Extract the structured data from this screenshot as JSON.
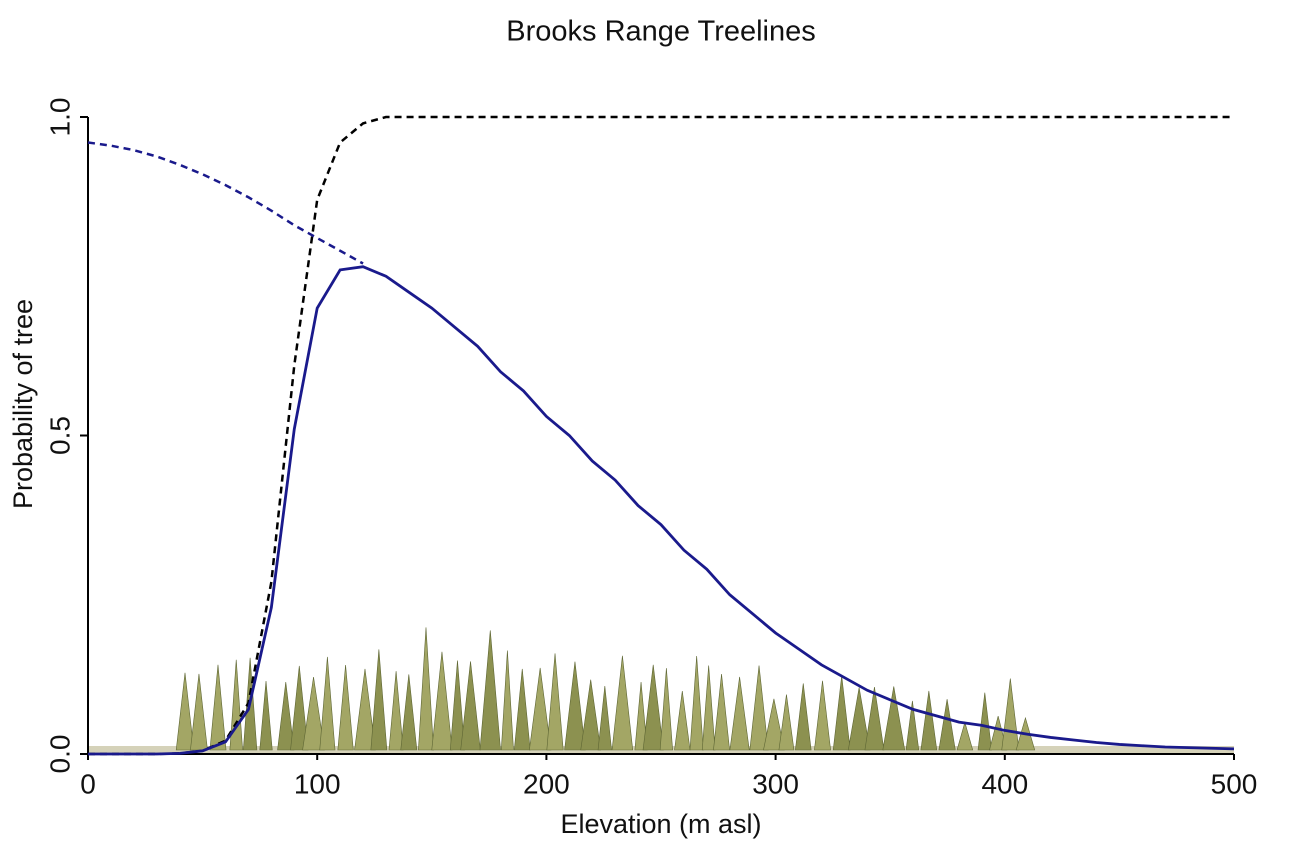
{
  "chart_data": {
    "type": "line",
    "title": "Brooks Range Treelines",
    "x_label": "Elevation (m asl)",
    "y_label": "Probability of tree",
    "x": [
      0,
      10,
      20,
      30,
      40,
      50,
      60,
      70,
      80,
      90,
      100,
      110,
      120,
      130,
      140,
      150,
      160,
      170,
      180,
      190,
      200,
      210,
      220,
      230,
      240,
      250,
      260,
      270,
      280,
      290,
      300,
      310,
      320,
      330,
      340,
      350,
      360,
      370,
      380,
      390,
      400,
      410,
      420,
      430,
      440,
      450,
      460,
      470,
      480,
      490,
      500
    ],
    "series": [
      {
        "color": "#000000",
        "linestyle": "dashed",
        "values": [
          0,
          0,
          0,
          0,
          0.001,
          0.005,
          0.021,
          0.08,
          0.27,
          0.61,
          0.87,
          0.96,
          0.99,
          1,
          1,
          1,
          1,
          1,
          1,
          1,
          1,
          1,
          1,
          1,
          1,
          1,
          1,
          1,
          1,
          1,
          1,
          1,
          1,
          1,
          1,
          1,
          1,
          1,
          1,
          1,
          1,
          1,
          1,
          1,
          1,
          1,
          1,
          1,
          1,
          1,
          1
        ]
      },
      {
        "color": "#1a1a8c",
        "linestyle": "dashed",
        "values": [
          0.96,
          0.955,
          0.948,
          0.938,
          0.925,
          0.91,
          0.893,
          0.874,
          0.853,
          0.83,
          0.81,
          0.79,
          0.77,
          null,
          null,
          null,
          null,
          null,
          null,
          null,
          null,
          null,
          null,
          null,
          null,
          null,
          null,
          null,
          null,
          null,
          null,
          null,
          null,
          null,
          null,
          null,
          null,
          null,
          null,
          null,
          null,
          null,
          null,
          null,
          null,
          null,
          null,
          null,
          null,
          null,
          null
        ]
      },
      {
        "color": "#1a1a8c",
        "linestyle": "solid",
        "values": [
          0,
          0,
          0,
          0,
          0.001,
          0.005,
          0.019,
          0.07,
          0.23,
          0.51,
          0.7,
          0.76,
          0.765,
          0.75,
          0.725,
          0.7,
          0.67,
          0.64,
          0.6,
          0.57,
          0.53,
          0.5,
          0.46,
          0.43,
          0.39,
          0.36,
          0.32,
          0.29,
          0.25,
          0.22,
          0.19,
          0.165,
          0.14,
          0.12,
          0.1,
          0.085,
          0.07,
          0.06,
          0.05,
          0.045,
          0.037,
          0.031,
          0.026,
          0.022,
          0.018,
          0.015,
          0.013,
          0.011,
          0.01,
          0.009,
          0.008
        ]
      }
    ],
    "xlim": [
      0,
      500
    ],
    "xticks": [
      0,
      100,
      200,
      300,
      400,
      500
    ],
    "ylim": [
      0,
      1
    ],
    "yticks": [
      {
        "value": 0,
        "label": "0.0"
      },
      0.5,
      {
        "value": 1,
        "label": "1.0"
      }
    ],
    "grid": false
  }
}
